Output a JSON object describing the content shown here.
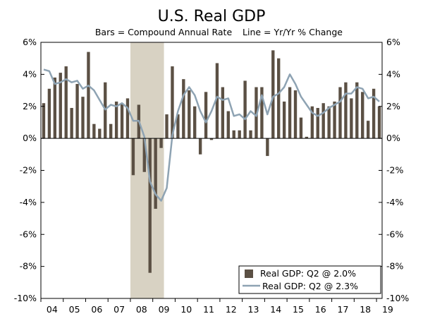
{
  "chart_data": {
    "type": "bar",
    "title": "U.S. Real GDP",
    "subtitle_left": "Bars = Compound Annual Rate",
    "subtitle_right": "Line = Yr/Yr % Change",
    "ylim": [
      -10,
      6
    ],
    "yticks": [
      6,
      4,
      2,
      0,
      -2,
      -4,
      -6,
      -8,
      -10
    ],
    "ytick_format": "{v}%",
    "x_start_year": 2004,
    "x_end_year": 2019,
    "xtick_labels": [
      "04",
      "05",
      "06",
      "07",
      "08",
      "09",
      "10",
      "11",
      "12",
      "13",
      "14",
      "15",
      "16",
      "17",
      "18",
      "19"
    ],
    "recession_band": {
      "from_quarter_index": 16,
      "to_quarter_index": 22,
      "color": "#d8d2c3"
    },
    "colors": {
      "bar": "#5b5044",
      "line": "#8ea3b3",
      "axis": "#000000"
    },
    "series": [
      {
        "name": "Real GDP: Q2 @ 2.0%",
        "kind": "bar",
        "values": [
          2.2,
          3.1,
          3.8,
          4.1,
          4.5,
          1.9,
          3.4,
          2.6,
          5.4,
          0.9,
          0.6,
          3.5,
          0.9,
          2.3,
          2.2,
          2.5,
          -2.3,
          2.1,
          -2.1,
          -8.4,
          -4.4,
          -0.6,
          1.5,
          4.5,
          1.5,
          3.7,
          3.0,
          2.0,
          -1.0,
          2.9,
          -0.1,
          4.7,
          3.2,
          1.7,
          0.5,
          0.5,
          3.6,
          0.5,
          3.2,
          3.2,
          -1.1,
          5.5,
          5.0,
          2.3,
          3.2,
          3.0,
          1.3,
          0.1,
          2.0,
          1.9,
          2.2,
          2.0,
          2.3,
          3.2,
          3.5,
          2.5,
          3.5,
          2.9,
          1.1,
          3.1,
          2.0
        ]
      },
      {
        "name": "Real GDP: Q2 @ 2.3%",
        "kind": "line",
        "values": [
          4.3,
          4.2,
          3.4,
          3.5,
          3.7,
          3.5,
          3.6,
          3.1,
          3.3,
          3.0,
          2.4,
          1.8,
          2.1,
          2.0,
          2.2,
          1.9,
          1.1,
          1.1,
          0.1,
          -2.7,
          -3.5,
          -3.9,
          -3.1,
          0.2,
          1.7,
          2.7,
          3.2,
          2.7,
          1.7,
          1.0,
          1.7,
          2.6,
          2.4,
          2.5,
          1.4,
          1.5,
          1.2,
          1.7,
          1.4,
          2.7,
          1.5,
          2.6,
          2.8,
          3.2,
          4.0,
          3.4,
          2.6,
          2.1,
          1.6,
          1.4,
          1.6,
          1.9,
          2.1,
          2.3,
          2.8,
          2.8,
          3.2,
          3.1,
          2.5,
          2.6,
          2.3
        ]
      }
    ],
    "legend_position": "bottom-right"
  }
}
